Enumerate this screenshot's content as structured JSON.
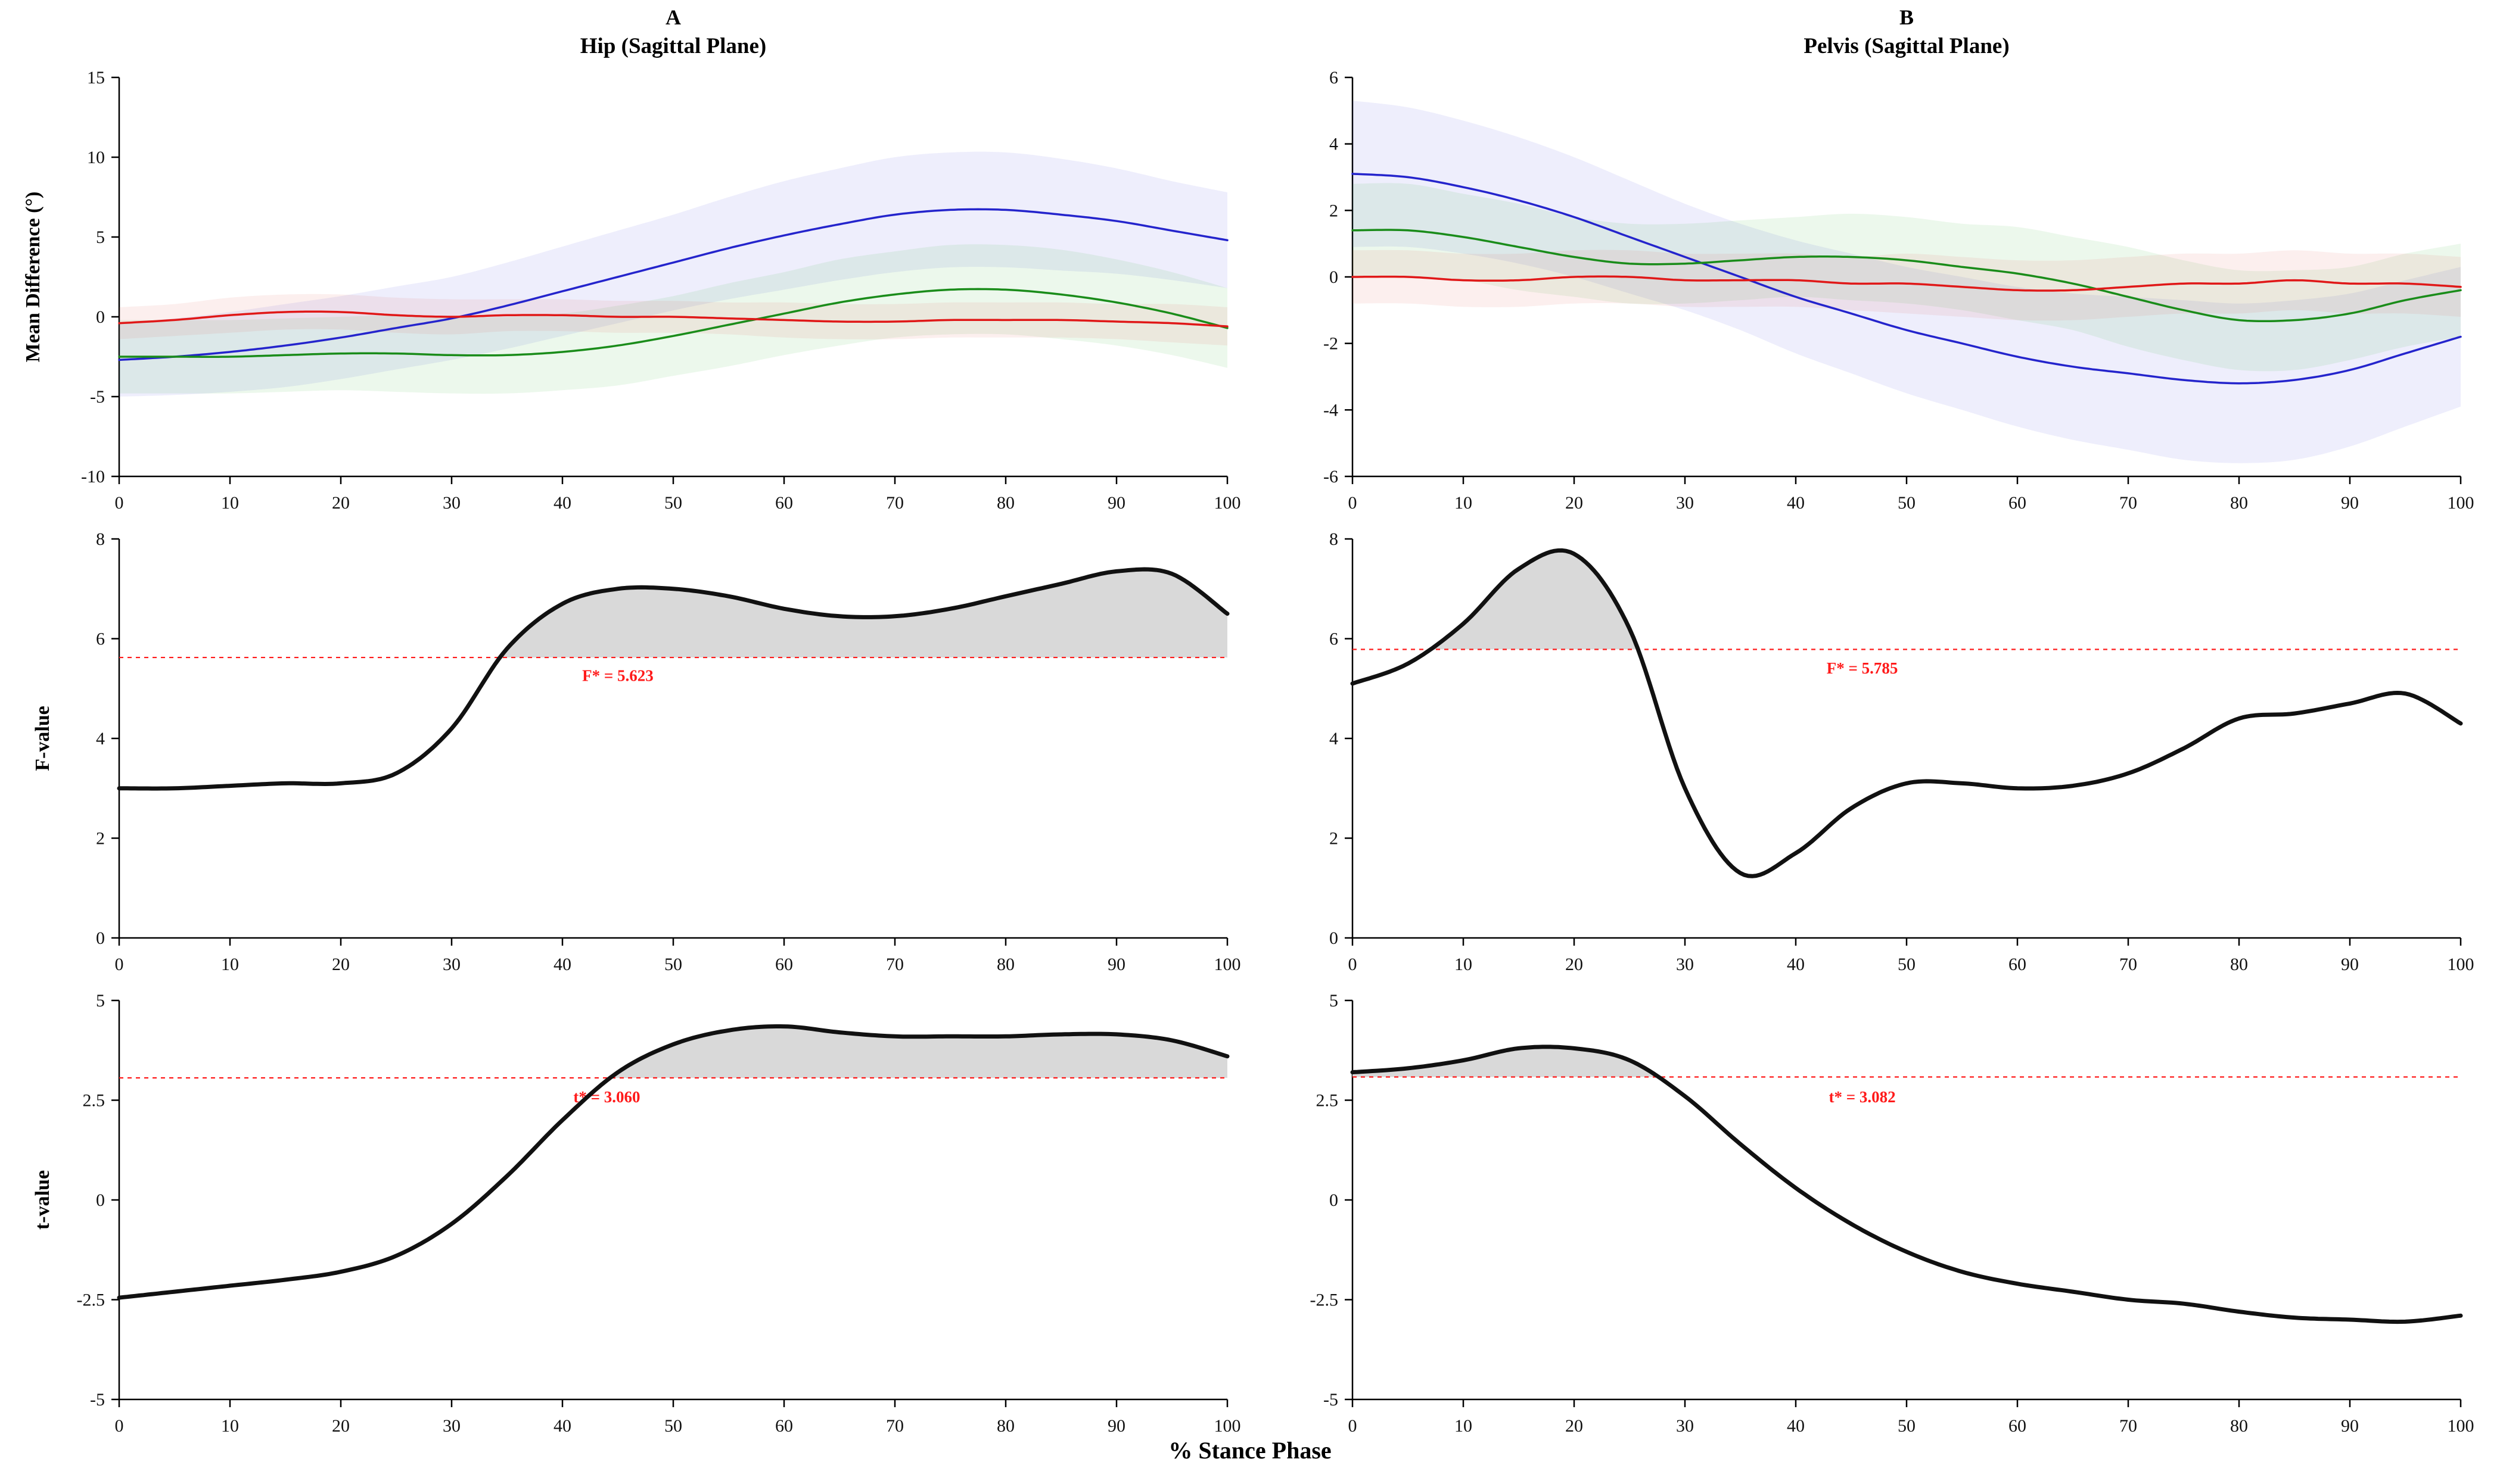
{
  "panels": {
    "a": {
      "letter": "A",
      "title": "Hip (Sagittal Plane)"
    },
    "b": {
      "letter": "B",
      "title": "Pelvis (Sagittal Plane)"
    }
  },
  "axis_labels": {
    "row1": "Mean Difference (°)",
    "row2": "F-value",
    "row3": "t-value",
    "x": "% Stance Phase"
  },
  "colors": {
    "blue": "#2424cc",
    "green": "#1a8c1a",
    "red": "#e01818",
    "black_curve": "#111111",
    "threshold": "#ff1a1a",
    "fill_gray": "#d9d9d9"
  },
  "chart_data": [
    {
      "id": "hip-mean-difference",
      "type": "line",
      "title": "Hip (Sagittal Plane)",
      "ylabel": "Mean Difference (°)",
      "xlim": [
        0,
        100
      ],
      "ylim": [
        -10,
        15
      ],
      "xticks": [
        0,
        10,
        20,
        30,
        40,
        50,
        60,
        70,
        80,
        90,
        100
      ],
      "yticks": [
        -10,
        -5,
        0,
        5,
        10,
        15
      ],
      "x": [
        0,
        5,
        10,
        15,
        20,
        25,
        30,
        35,
        40,
        45,
        50,
        55,
        60,
        65,
        70,
        75,
        80,
        85,
        90,
        95,
        100
      ],
      "series": [
        {
          "name": "blue",
          "color": "#2424cc",
          "width": 3.5,
          "values": [
            -2.7,
            -2.5,
            -2.2,
            -1.8,
            -1.3,
            -0.7,
            -0.1,
            0.7,
            1.6,
            2.5,
            3.4,
            4.3,
            5.1,
            5.8,
            6.4,
            6.7,
            6.7,
            6.4,
            6.0,
            5.4,
            4.8
          ],
          "band": [
            2.3,
            2.4,
            2.5,
            2.6,
            2.6,
            2.6,
            2.6,
            2.7,
            2.8,
            2.9,
            3.0,
            3.2,
            3.4,
            3.5,
            3.6,
            3.6,
            3.6,
            3.5,
            3.3,
            3.1,
            3.0
          ],
          "band_color": "#5555dd",
          "band_opacity": 0.1
        },
        {
          "name": "green",
          "color": "#1a8c1a",
          "width": 3.5,
          "values": [
            -2.5,
            -2.5,
            -2.5,
            -2.4,
            -2.3,
            -2.3,
            -2.4,
            -2.4,
            -2.2,
            -1.8,
            -1.2,
            -0.5,
            0.2,
            0.9,
            1.4,
            1.7,
            1.7,
            1.4,
            0.9,
            0.2,
            -0.7
          ],
          "band": [
            2.3,
            2.3,
            2.3,
            2.3,
            2.3,
            2.4,
            2.4,
            2.4,
            2.4,
            2.5,
            2.5,
            2.6,
            2.6,
            2.7,
            2.7,
            2.8,
            2.8,
            2.8,
            2.7,
            2.6,
            2.5
          ],
          "band_color": "#44bb44",
          "band_opacity": 0.1
        },
        {
          "name": "red",
          "color": "#e01818",
          "width": 3.5,
          "values": [
            -0.4,
            -0.2,
            0.1,
            0.3,
            0.3,
            0.1,
            0.0,
            0.1,
            0.1,
            0.0,
            0.0,
            -0.1,
            -0.2,
            -0.3,
            -0.3,
            -0.2,
            -0.2,
            -0.2,
            -0.3,
            -0.4,
            -0.6
          ],
          "band": [
            1.0,
            1.0,
            1.1,
            1.1,
            1.1,
            1.1,
            1.1,
            1.0,
            1.0,
            1.0,
            1.0,
            1.0,
            1.1,
            1.1,
            1.1,
            1.1,
            1.1,
            1.1,
            1.1,
            1.2,
            1.2
          ],
          "band_color": "#dd6655",
          "band_opacity": 0.1
        }
      ]
    },
    {
      "id": "pelvis-mean-difference",
      "type": "line",
      "title": "Pelvis (Sagittal Plane)",
      "ylabel": "Mean Difference (°)",
      "xlim": [
        0,
        100
      ],
      "ylim": [
        -6,
        6
      ],
      "xticks": [
        0,
        10,
        20,
        30,
        40,
        50,
        60,
        70,
        80,
        90,
        100
      ],
      "yticks": [
        -6,
        -4,
        -2,
        0,
        2,
        4,
        6
      ],
      "x": [
        0,
        5,
        10,
        15,
        20,
        25,
        30,
        35,
        40,
        45,
        50,
        55,
        60,
        65,
        70,
        75,
        80,
        85,
        90,
        95,
        100
      ],
      "series": [
        {
          "name": "blue",
          "color": "#2424cc",
          "width": 3.5,
          "values": [
            3.1,
            3.0,
            2.7,
            2.3,
            1.8,
            1.2,
            0.6,
            0.0,
            -0.6,
            -1.1,
            -1.6,
            -2.0,
            -2.4,
            -2.7,
            -2.9,
            -3.1,
            -3.2,
            -3.1,
            -2.8,
            -2.3,
            -1.8
          ],
          "band": [
            2.2,
            2.1,
            2.0,
            1.9,
            1.8,
            1.7,
            1.6,
            1.6,
            1.7,
            1.8,
            1.9,
            2.0,
            2.1,
            2.2,
            2.3,
            2.4,
            2.4,
            2.4,
            2.3,
            2.2,
            2.1
          ],
          "band_color": "#5555dd",
          "band_opacity": 0.1
        },
        {
          "name": "green",
          "color": "#1a8c1a",
          "width": 3.5,
          "values": [
            1.4,
            1.4,
            1.2,
            0.9,
            0.6,
            0.4,
            0.4,
            0.5,
            0.6,
            0.6,
            0.5,
            0.3,
            0.1,
            -0.2,
            -0.6,
            -1.0,
            -1.3,
            -1.3,
            -1.1,
            -0.7,
            -0.4
          ],
          "band": [
            1.4,
            1.4,
            1.3,
            1.3,
            1.2,
            1.2,
            1.2,
            1.2,
            1.2,
            1.3,
            1.3,
            1.3,
            1.4,
            1.4,
            1.5,
            1.5,
            1.5,
            1.5,
            1.4,
            1.4,
            1.4
          ],
          "band_color": "#44bb44",
          "band_opacity": 0.1
        },
        {
          "name": "red",
          "color": "#e01818",
          "width": 3.5,
          "values": [
            0.0,
            0.0,
            -0.1,
            -0.1,
            0.0,
            0.0,
            -0.1,
            -0.1,
            -0.1,
            -0.2,
            -0.2,
            -0.3,
            -0.4,
            -0.4,
            -0.3,
            -0.2,
            -0.2,
            -0.1,
            -0.2,
            -0.2,
            -0.3
          ],
          "band": [
            0.8,
            0.8,
            0.8,
            0.8,
            0.8,
            0.8,
            0.8,
            0.8,
            0.8,
            0.8,
            0.9,
            0.9,
            0.9,
            0.9,
            0.9,
            0.9,
            0.9,
            0.9,
            0.9,
            0.9,
            0.9
          ],
          "band_color": "#dd6655",
          "band_opacity": 0.1
        }
      ]
    },
    {
      "id": "hip-f-value",
      "type": "line",
      "ylabel": "F-value",
      "xlim": [
        0,
        100
      ],
      "ylim": [
        0,
        8
      ],
      "xticks": [
        0,
        10,
        20,
        30,
        40,
        50,
        60,
        70,
        80,
        90,
        100
      ],
      "yticks": [
        0,
        2,
        4,
        6,
        8
      ],
      "x": [
        0,
        5,
        10,
        15,
        20,
        25,
        30,
        35,
        40,
        45,
        50,
        55,
        60,
        65,
        70,
        75,
        80,
        85,
        90,
        95,
        100
      ],
      "threshold": {
        "value": 5.623,
        "label": "F* = 5.623",
        "label_x": 45,
        "label_y": 5.15
      },
      "series": [
        {
          "name": "F-statistic",
          "color": "#111111",
          "width": 7,
          "values": [
            3.0,
            3.0,
            3.05,
            3.1,
            3.1,
            3.3,
            4.2,
            5.8,
            6.7,
            7.0,
            7.0,
            6.85,
            6.6,
            6.45,
            6.45,
            6.6,
            6.85,
            7.1,
            7.35,
            7.3,
            6.5
          ],
          "fill_above_threshold": true
        }
      ]
    },
    {
      "id": "pelvis-f-value",
      "type": "line",
      "ylabel": "F-value",
      "xlim": [
        0,
        100
      ],
      "ylim": [
        0,
        8
      ],
      "xticks": [
        0,
        10,
        20,
        30,
        40,
        50,
        60,
        70,
        80,
        90,
        100
      ],
      "yticks": [
        0,
        2,
        4,
        6,
        8
      ],
      "x": [
        0,
        5,
        10,
        15,
        20,
        25,
        30,
        35,
        40,
        45,
        50,
        55,
        60,
        65,
        70,
        75,
        80,
        85,
        90,
        95,
        100
      ],
      "threshold": {
        "value": 5.785,
        "label": "F* = 5.785",
        "label_x": 46,
        "label_y": 5.3
      },
      "series": [
        {
          "name": "F-statistic",
          "color": "#111111",
          "width": 7,
          "values": [
            5.1,
            5.5,
            6.3,
            7.4,
            7.7,
            6.2,
            3.0,
            1.3,
            1.7,
            2.6,
            3.1,
            3.1,
            3.0,
            3.05,
            3.3,
            3.8,
            4.4,
            4.5,
            4.7,
            4.9,
            4.3
          ],
          "fill_above_threshold": true
        }
      ]
    },
    {
      "id": "hip-t-value",
      "type": "line",
      "ylabel": "t-value",
      "xlim": [
        0,
        100
      ],
      "ylim": [
        -5,
        5
      ],
      "xticks": [
        0,
        10,
        20,
        30,
        40,
        50,
        60,
        70,
        80,
        90,
        100
      ],
      "yticks": [
        -5,
        -2.5,
        0,
        2.5,
        5
      ],
      "x": [
        0,
        5,
        10,
        15,
        20,
        25,
        30,
        35,
        40,
        45,
        50,
        55,
        60,
        65,
        70,
        75,
        80,
        85,
        90,
        95,
        100
      ],
      "threshold": {
        "value": 3.06,
        "label": "t* = 3.060",
        "label_x": 44,
        "label_y": 2.45
      },
      "series": [
        {
          "name": "t-statistic",
          "color": "#111111",
          "width": 7,
          "values": [
            -2.45,
            -2.3,
            -2.15,
            -2.0,
            -1.8,
            -1.4,
            -0.6,
            0.6,
            2.0,
            3.2,
            3.9,
            4.25,
            4.35,
            4.2,
            4.1,
            4.1,
            4.1,
            4.15,
            4.15,
            4.0,
            3.6
          ],
          "fill_above_threshold": true
        }
      ]
    },
    {
      "id": "pelvis-t-value",
      "type": "line",
      "ylabel": "t-value",
      "xlim": [
        0,
        100
      ],
      "ylim": [
        -5,
        5
      ],
      "xticks": [
        0,
        10,
        20,
        30,
        40,
        50,
        60,
        70,
        80,
        90,
        100
      ],
      "yticks": [
        -5,
        -2.5,
        0,
        2.5,
        5
      ],
      "x": [
        0,
        5,
        10,
        15,
        20,
        25,
        30,
        35,
        40,
        45,
        50,
        55,
        60,
        65,
        70,
        75,
        80,
        85,
        90,
        95,
        100
      ],
      "threshold": {
        "value": 3.082,
        "label": "t* = 3.082",
        "label_x": 46,
        "label_y": 2.45
      },
      "series": [
        {
          "name": "t-statistic",
          "color": "#111111",
          "width": 7,
          "values": [
            3.2,
            3.3,
            3.5,
            3.8,
            3.8,
            3.5,
            2.6,
            1.4,
            0.3,
            -0.6,
            -1.3,
            -1.8,
            -2.1,
            -2.3,
            -2.5,
            -2.6,
            -2.8,
            -2.95,
            -3.0,
            -3.05,
            -2.9
          ],
          "fill_above_threshold": true
        }
      ]
    }
  ]
}
